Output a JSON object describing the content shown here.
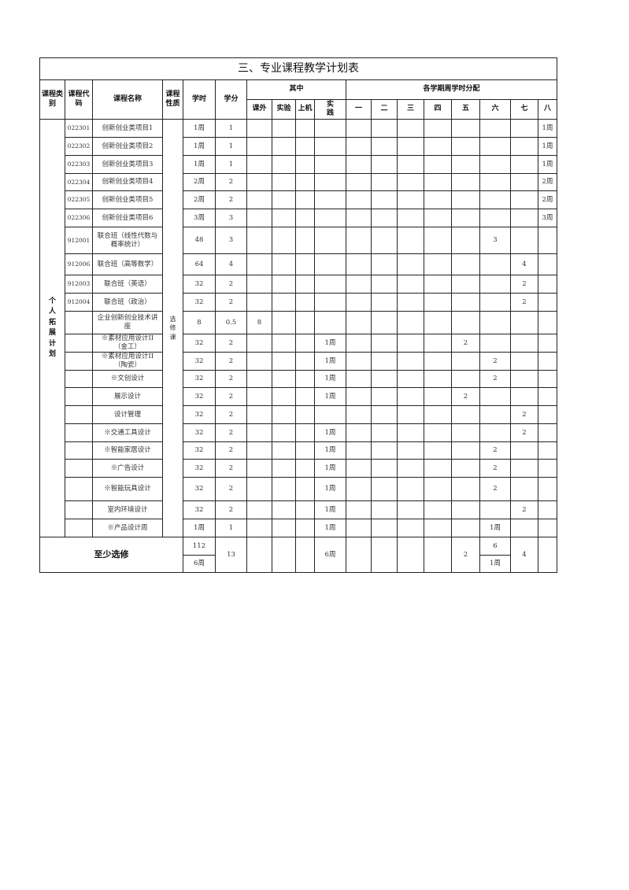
{
  "title": "三、专业课程教学计划表",
  "headers": {
    "category": "课程类别",
    "code": "课程代码",
    "name": "课程名称",
    "nature": "课程性质",
    "hours": "学时",
    "credits": "学分",
    "among": "其中",
    "among_cols": [
      "课外",
      "实验",
      "上机",
      "实践"
    ],
    "semesters_group": "各学期周学时分配",
    "semesters": [
      "一",
      "二",
      "三",
      "四",
      "五",
      "六",
      "七",
      "八"
    ]
  },
  "category": "个人拓展计划",
  "nature": "选修课",
  "rows": [
    {
      "code": "022301",
      "name": "创新创业类项目1",
      "hours": "1周",
      "credits": "1",
      "among": [
        "",
        "",
        "",
        ""
      ],
      "sem": [
        "",
        "",
        "",
        "",
        "",
        "",
        "",
        "1周"
      ]
    },
    {
      "code": "022302",
      "name": "创新创业类项目2",
      "hours": "1周",
      "credits": "1",
      "among": [
        "",
        "",
        "",
        ""
      ],
      "sem": [
        "",
        "",
        "",
        "",
        "",
        "",
        "",
        "1周"
      ]
    },
    {
      "code": "022303",
      "name": "创新创业类项目3",
      "hours": "1周",
      "credits": "1",
      "among": [
        "",
        "",
        "",
        ""
      ],
      "sem": [
        "",
        "",
        "",
        "",
        "",
        "",
        "",
        "1周"
      ]
    },
    {
      "code": "022304",
      "name": "创新创业类项目4",
      "hours": "2周",
      "credits": "2",
      "among": [
        "",
        "",
        "",
        ""
      ],
      "sem": [
        "",
        "",
        "",
        "",
        "",
        "",
        "",
        "2周"
      ]
    },
    {
      "code": "022305",
      "name": "创新创业类项目5",
      "hours": "2周",
      "credits": "2",
      "among": [
        "",
        "",
        "",
        ""
      ],
      "sem": [
        "",
        "",
        "",
        "",
        "",
        "",
        "",
        "2周"
      ]
    },
    {
      "code": "022306",
      "name": "创新创业类项目6",
      "hours": "3周",
      "credits": "3",
      "among": [
        "",
        "",
        "",
        ""
      ],
      "sem": [
        "",
        "",
        "",
        "",
        "",
        "",
        "",
        "3周"
      ]
    },
    {
      "code": "912001",
      "name": "联合班（线性代数与概率统计）",
      "hours": "48",
      "credits": "3",
      "among": [
        "",
        "",
        "",
        ""
      ],
      "sem": [
        "",
        "",
        "",
        "",
        "",
        "3",
        "",
        ""
      ]
    },
    {
      "code": "912006",
      "name": "联合班（高等数学）",
      "hours": "64",
      "credits": "4",
      "among": [
        "",
        "",
        "",
        ""
      ],
      "sem": [
        "",
        "",
        "",
        "",
        "",
        "",
        "4",
        ""
      ]
    },
    {
      "code": "912003",
      "name": "联合班（英语）",
      "hours": "32",
      "credits": "2",
      "among": [
        "",
        "",
        "",
        ""
      ],
      "sem": [
        "",
        "",
        "",
        "",
        "",
        "",
        "2",
        ""
      ]
    },
    {
      "code": "912004",
      "name": "联合班（政治）",
      "hours": "32",
      "credits": "2",
      "among": [
        "",
        "",
        "",
        ""
      ],
      "sem": [
        "",
        "",
        "",
        "",
        "",
        "",
        "2",
        ""
      ]
    },
    {
      "code": "",
      "name": "企业创新创业技术讲座",
      "hours": "8",
      "credits": "0.5",
      "among": [
        "8",
        "",
        "",
        ""
      ],
      "sem": [
        "",
        "",
        "",
        "",
        "",
        "",
        "",
        ""
      ]
    },
    {
      "code": "",
      "name": "※素材应用设计II（金工）",
      "hours": "32",
      "credits": "2",
      "among": [
        "",
        "",
        "",
        "1周"
      ],
      "sem": [
        "",
        "",
        "",
        "",
        "2",
        "",
        "",
        ""
      ]
    },
    {
      "code": "",
      "name": "※素材应用设计II（陶瓷）",
      "hours": "32",
      "credits": "2",
      "among": [
        "",
        "",
        "",
        "1周"
      ],
      "sem": [
        "",
        "",
        "",
        "",
        "",
        "2",
        "",
        ""
      ]
    },
    {
      "code": "",
      "name": "※文创设计",
      "hours": "32",
      "credits": "2",
      "among": [
        "",
        "",
        "",
        "1周"
      ],
      "sem": [
        "",
        "",
        "",
        "",
        "",
        "2",
        "",
        ""
      ]
    },
    {
      "code": "",
      "name": "展示设计",
      "hours": "32",
      "credits": "2",
      "among": [
        "",
        "",
        "",
        "1周"
      ],
      "sem": [
        "",
        "",
        "",
        "",
        "2",
        "",
        "",
        ""
      ]
    },
    {
      "code": "",
      "name": "设计管理",
      "hours": "32",
      "credits": "2",
      "among": [
        "",
        "",
        "",
        ""
      ],
      "sem": [
        "",
        "",
        "",
        "",
        "",
        "",
        "2",
        ""
      ]
    },
    {
      "code": "",
      "name": "※交通工具设计",
      "hours": "32",
      "credits": "2",
      "among": [
        "",
        "",
        "",
        "1周"
      ],
      "sem": [
        "",
        "",
        "",
        "",
        "",
        "",
        "2",
        ""
      ]
    },
    {
      "code": "",
      "name": "※智能家居设计",
      "hours": "32",
      "credits": "2",
      "among": [
        "",
        "",
        "",
        "1周"
      ],
      "sem": [
        "",
        "",
        "",
        "",
        "",
        "2",
        "",
        ""
      ]
    },
    {
      "code": "",
      "name": "※广告设计",
      "hours": "32",
      "credits": "2",
      "among": [
        "",
        "",
        "",
        "1周"
      ],
      "sem": [
        "",
        "",
        "",
        "",
        "",
        "2",
        "",
        ""
      ]
    },
    {
      "code": "",
      "name": "※智能玩具设计",
      "hours": "32",
      "credits": "2",
      "among": [
        "",
        "",
        "",
        "1周"
      ],
      "sem": [
        "",
        "",
        "",
        "",
        "",
        "2",
        "",
        ""
      ]
    },
    {
      "code": "",
      "name": "室内环境设计",
      "hours": "32",
      "credits": "2",
      "among": [
        "",
        "",
        "",
        "1周"
      ],
      "sem": [
        "",
        "",
        "",
        "",
        "",
        "",
        "2",
        ""
      ]
    },
    {
      "code": "",
      "name": "※产品设计周",
      "hours": "1周",
      "credits": "1",
      "among": [
        "",
        "",
        "",
        "1周"
      ],
      "sem": [
        "",
        "",
        "",
        "",
        "",
        "1周",
        "",
        ""
      ]
    }
  ],
  "total": {
    "label": "至少选修",
    "hours_top": "112",
    "hours_bottom": "6周",
    "credits": "13",
    "practice": "6周",
    "sem5": "2",
    "sem6_top": "6",
    "sem6_bottom": "1周",
    "sem7": "4"
  }
}
